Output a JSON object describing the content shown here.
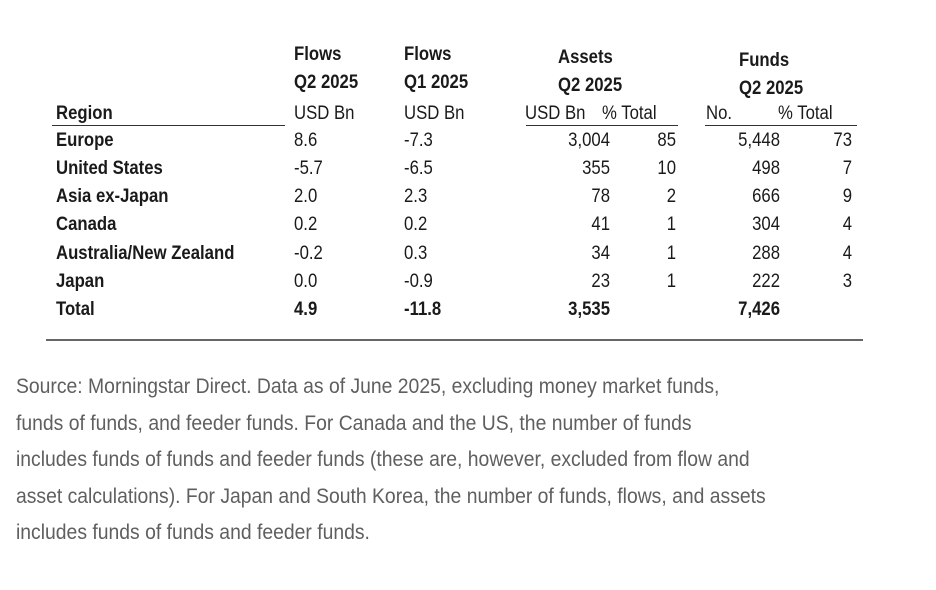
{
  "table": {
    "headers": {
      "flows_q2": {
        "line1": "Flows",
        "line2": "Q2 2025",
        "unit": "USD Bn"
      },
      "flows_q1": {
        "line1": "Flows",
        "line2": "Q1 2025",
        "unit": "USD Bn"
      },
      "assets": {
        "line1": "Assets",
        "line2": "Q2 2025",
        "unit1": "USD Bn",
        "unit2": "% Total"
      },
      "funds": {
        "line1": "Funds",
        "line2": "Q2 2025",
        "unit1": "No.",
        "unit2": "% Total"
      },
      "region": "Region"
    },
    "rows": [
      {
        "region": "Europe",
        "flows_q2": "8.6",
        "flows_q1": "-7.3",
        "assets": "3,004",
        "assets_pct": "85",
        "funds": "5,448",
        "funds_pct": "73"
      },
      {
        "region": "United States",
        "flows_q2": "-5.7",
        "flows_q1": "-6.5",
        "assets": "355",
        "assets_pct": "10",
        "funds": "498",
        "funds_pct": "7"
      },
      {
        "region": "Asia ex-Japan",
        "flows_q2": "2.0",
        "flows_q1": "2.3",
        "assets": "78",
        "assets_pct": "2",
        "funds": "666",
        "funds_pct": "9"
      },
      {
        "region": "Canada",
        "flows_q2": "0.2",
        "flows_q1": "0.2",
        "assets": "41",
        "assets_pct": "1",
        "funds": "304",
        "funds_pct": "4"
      },
      {
        "region": "Australia/New Zealand",
        "flows_q2": "-0.2",
        "flows_q1": "0.3",
        "assets": "34",
        "assets_pct": "1",
        "funds": "288",
        "funds_pct": "4"
      },
      {
        "region": "Japan",
        "flows_q2": "0.0",
        "flows_q1": "-0.9",
        "assets": "23",
        "assets_pct": "1",
        "funds": "222",
        "funds_pct": "3"
      }
    ],
    "total": {
      "region": "Total",
      "flows_q2": "4.9",
      "flows_q1": "-11.8",
      "assets": "3,535",
      "funds": "7,426"
    }
  },
  "source_lines": [
    "Source: Morningstar Direct. Data as of June 2025, excluding money market funds,",
    "funds of funds, and feeder funds. For Canada and the US, the number of funds",
    "includes funds of funds and feeder funds (these are, however, excluded from flow and",
    "asset calculations). For Japan and South Korea, the number of funds, flows, and assets",
    "includes funds of funds and feeder funds."
  ]
}
